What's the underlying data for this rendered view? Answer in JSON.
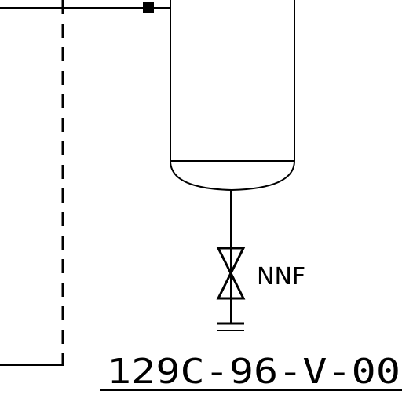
{
  "diagram": {
    "valve_note": "NNF",
    "equipment_tag": "129C-96-V-00"
  },
  "colors": {
    "line": "#000000",
    "background": "#ffffff"
  }
}
